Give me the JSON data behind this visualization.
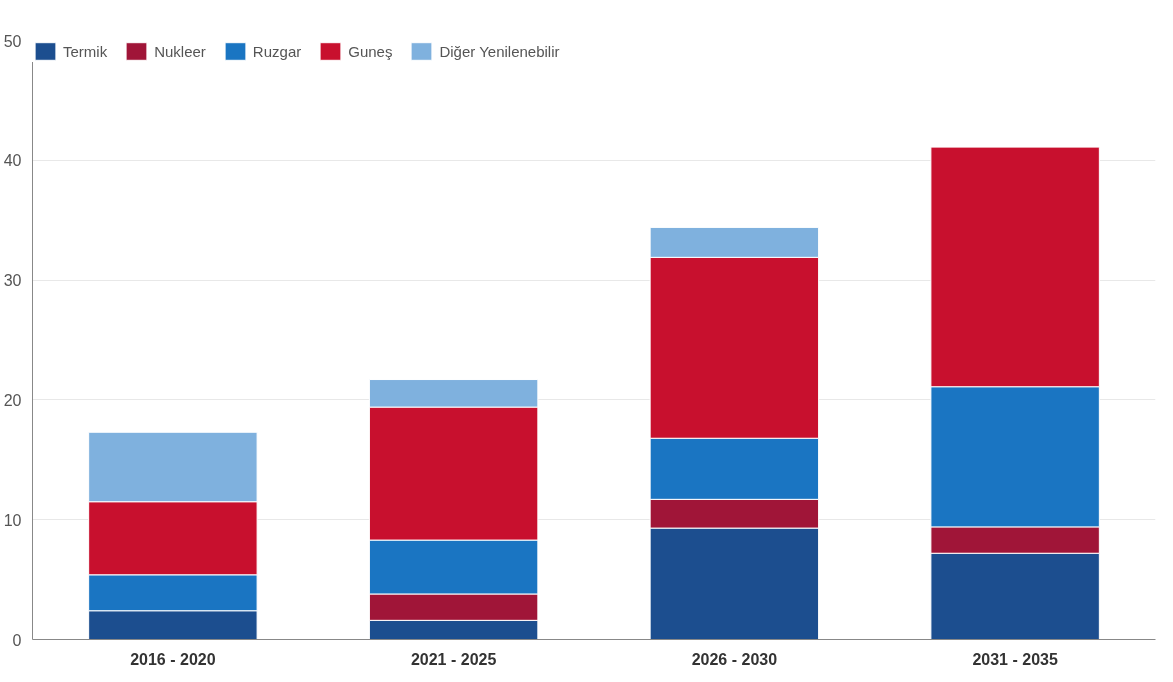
{
  "chart_data": {
    "type": "bar",
    "stacked": true,
    "categories": [
      "2016 - 2020",
      "2021 - 2025",
      "2026 - 2030",
      "2031 - 2035"
    ],
    "series": [
      {
        "name": "Termik",
        "color": "#1c4e8f",
        "values": [
          2.4,
          1.6,
          9.3,
          7.2
        ]
      },
      {
        "name": "Nukleer",
        "color": "#a01538",
        "values": [
          0,
          2.2,
          2.4,
          2.2
        ]
      },
      {
        "name": "Ruzgar",
        "color": "#1a75c2",
        "values": [
          3.0,
          4.5,
          5.1,
          11.7
        ]
      },
      {
        "name": "Guneş",
        "color": "#c8102e",
        "values": [
          6.1,
          11.1,
          15.1,
          20.0
        ]
      },
      {
        "name": "Diğer Yenilenebilir",
        "color": "#7fb1de",
        "values": [
          5.8,
          2.3,
          2.5,
          0
        ]
      }
    ],
    "ylim": [
      0,
      50
    ],
    "yticks": [
      0,
      10,
      20,
      30,
      40,
      50
    ],
    "grid": "y",
    "legend": "top"
  }
}
